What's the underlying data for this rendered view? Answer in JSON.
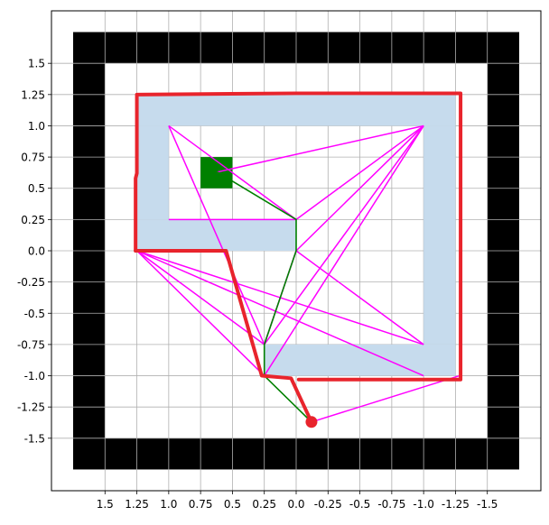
{
  "chart_data": {
    "type": "scatter",
    "title": "",
    "xlabel": "",
    "ylabel": "",
    "xlim": [
      1.92,
      -1.92
    ],
    "ylim": [
      -1.92,
      1.92
    ],
    "x_inverted": true,
    "grid": true,
    "x_ticks": [
      1.5,
      1.25,
      1.0,
      0.75,
      0.5,
      0.25,
      0.0,
      -0.25,
      -0.5,
      -0.75,
      -1.0,
      -1.25,
      -1.5
    ],
    "x_tick_labels": [
      "1.5",
      "1.25",
      "1.0",
      "0.75",
      "0.5",
      "0.25",
      "0.0",
      "-0.25",
      "-0.5",
      "-0.75",
      "-1.0",
      "-1.25",
      "-1.5"
    ],
    "y_ticks": [
      1.5,
      1.25,
      1.0,
      0.75,
      0.5,
      0.25,
      0.0,
      -0.25,
      -0.5,
      -0.75,
      -1.0,
      -1.25,
      -1.5
    ],
    "y_tick_labels": [
      "1.5",
      "1.25",
      "1.0",
      "0.75",
      "0.5",
      "0.25",
      "0.0",
      "-0.25",
      "-0.5",
      "-0.75",
      "-1.0",
      "-1.25",
      "-1.5"
    ],
    "colors": {
      "outer_wall": "#000000",
      "obstacle": "#c6dbed",
      "goal": "#008000",
      "roadmap": "#ff00ff",
      "shortest_path": "#008000",
      "robot_path": "#e8242c",
      "start": "#e8242c",
      "grid": "#b0b0b0"
    },
    "outer_wall": {
      "outer": {
        "x0": 1.75,
        "x1": -1.75,
        "y0": -1.75,
        "y1": 1.75
      },
      "inner": {
        "x0": 1.5,
        "x1": -1.5,
        "y0": -1.5,
        "y1": 1.5
      }
    },
    "obstacles": [
      {
        "x0": 1.25,
        "x1": -1.25,
        "y0": 1.0,
        "y1": 1.25
      },
      {
        "x0": 1.25,
        "x1": 1.0,
        "y0": 0.25,
        "y1": 1.0
      },
      {
        "x0": 1.25,
        "x1": 0.0,
        "y0": 0.0,
        "y1": 0.25
      },
      {
        "x0": -1.0,
        "x1": -1.25,
        "y0": -0.75,
        "y1": 1.0
      },
      {
        "x0": 0.25,
        "x1": -1.25,
        "y0": -1.0,
        "y1": -0.75
      }
    ],
    "goal": {
      "x0": 0.75,
      "x1": 0.5,
      "y0": 0.5,
      "y1": 0.75
    },
    "start": {
      "x": -0.12,
      "y": -1.37
    },
    "roadmap_edges": [
      [
        [
          1.0,
          1.0
        ],
        [
          0.0,
          0.25
        ]
      ],
      [
        [
          1.0,
          1.0
        ],
        [
          0.25,
          -0.75
        ]
      ],
      [
        [
          1.0,
          0.25
        ],
        [
          0.0,
          0.25
        ]
      ],
      [
        [
          0.62,
          0.63
        ],
        [
          -1.0,
          1.0
        ]
      ],
      [
        [
          0.0,
          0.25
        ],
        [
          -1.0,
          1.0
        ]
      ],
      [
        [
          0.0,
          0.0
        ],
        [
          -1.0,
          1.0
        ]
      ],
      [
        [
          0.25,
          -0.75
        ],
        [
          -1.0,
          1.0
        ]
      ],
      [
        [
          0.25,
          -1.0
        ],
        [
          -1.0,
          1.0
        ]
      ],
      [
        [
          0.0,
          0.0
        ],
        [
          -1.0,
          -0.75
        ]
      ],
      [
        [
          0.25,
          -0.75
        ],
        [
          0.0,
          0.0
        ]
      ],
      [
        [
          1.25,
          0.0
        ],
        [
          0.25,
          -0.75
        ]
      ],
      [
        [
          1.25,
          0.0
        ],
        [
          0.25,
          -1.0
        ]
      ],
      [
        [
          1.25,
          0.0
        ],
        [
          -1.0,
          -0.75
        ]
      ],
      [
        [
          1.25,
          0.0
        ],
        [
          -1.0,
          -1.0
        ]
      ],
      [
        [
          -0.12,
          -1.37
        ],
        [
          -1.28,
          -1.0
        ]
      ]
    ],
    "shortest_path": [
      [
        0.62,
        0.63
      ],
      [
        0.0,
        0.25
      ],
      [
        0.0,
        0.0
      ],
      [
        0.25,
        -0.75
      ],
      [
        0.25,
        -1.0
      ],
      [
        -0.12,
        -1.37
      ]
    ],
    "robot_path_segments": [
      [
        [
          1.26,
          0.0
        ],
        [
          1.24,
          0.0
        ],
        [
          0.55,
          0.0
        ],
        [
          0.27,
          -1.0
        ],
        [
          0.04,
          -1.02
        ],
        [
          -0.12,
          -1.37
        ]
      ],
      [
        [
          1.26,
          0.0
        ],
        [
          1.26,
          0.58
        ],
        [
          1.25,
          0.62
        ],
        [
          1.25,
          1.25
        ],
        [
          0.0,
          1.26
        ],
        [
          -1.29,
          1.26
        ],
        [
          -1.29,
          -1.03
        ],
        [
          -0.64,
          -1.03
        ],
        [
          -0.02,
          -1.03
        ]
      ]
    ]
  }
}
